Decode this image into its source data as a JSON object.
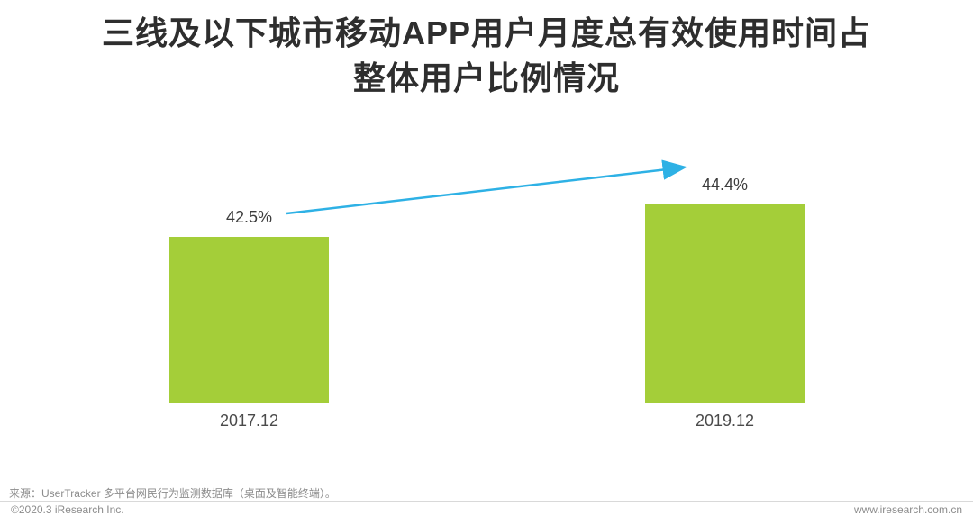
{
  "title": {
    "line1": "三线及以下城市移动APP用户月度总有效使用时间占",
    "line2": "整体用户比例情况"
  },
  "chart_data": {
    "type": "bar",
    "title": "三线及以下城市移动APP用户月度总有效使用时间占整体用户比例情况",
    "categories": [
      "2017.12",
      "2019.12"
    ],
    "values": [
      42.5,
      44.4
    ],
    "value_labels": [
      "42.5%",
      "44.4%"
    ],
    "unit": "%",
    "xlabel": "",
    "ylabel": "",
    "ylim": [
      32.7,
      46
    ],
    "grid": false,
    "legend": "none",
    "annotations": [
      "upward trend arrow from 42.5% label to 44.4% label"
    ]
  },
  "colors": {
    "bar": "#a4ce39",
    "arrow": "#2eb1e5",
    "title_text": "#2e2e2e",
    "footer_text": "#8c8c8c"
  },
  "source_note": "来源：UserTracker 多平台网民行为监测数据库（桌面及智能终端）。",
  "footer": {
    "left": "©2020.3 iResearch Inc.",
    "right": "www.iresearch.com.cn"
  }
}
